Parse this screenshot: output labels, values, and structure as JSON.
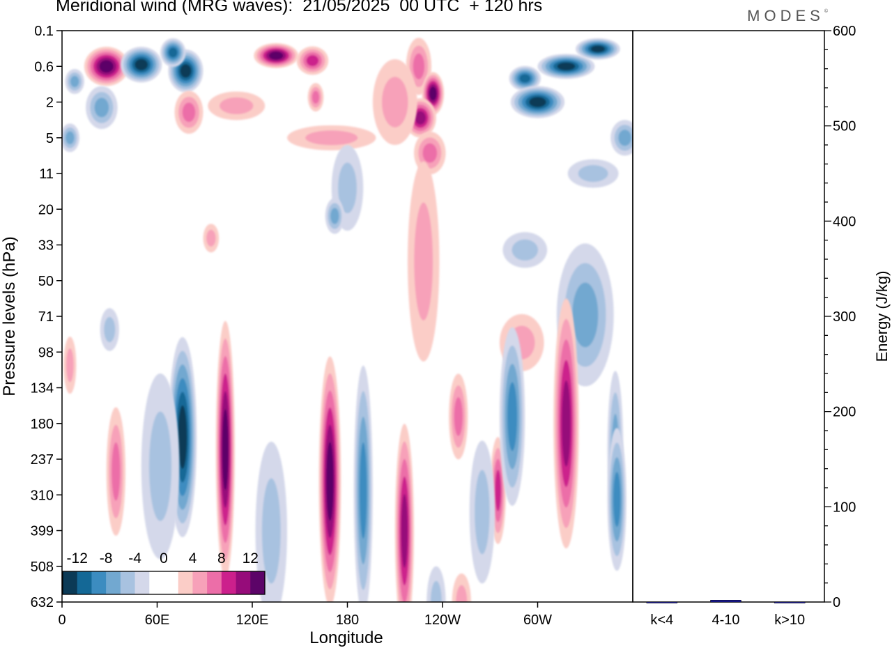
{
  "header": {
    "title": "Meridional wind (MRG waves):  21/05/2025  00 UTC  + 120 hrs",
    "brand": "MODES",
    "brand_mark": "©"
  },
  "chart_data": [
    {
      "type": "heatmap",
      "title": "Meridional wind (MRG waves):  21/05/2025  00 UTC  + 120 hrs",
      "xlabel": "Longitude",
      "ylabel": "Pressure levels (hPa)",
      "x_ticks": [
        "0",
        "60E",
        "120E",
        "180",
        "120W",
        "60W"
      ],
      "x_tick_degrees": [
        0,
        60,
        120,
        180,
        240,
        300
      ],
      "xlim_degrees": [
        0,
        360
      ],
      "y_ticks": [
        "0.1",
        "0.6",
        "2",
        "5",
        "11",
        "20",
        "33",
        "50",
        "71",
        "98",
        "134",
        "180",
        "237",
        "310",
        "399",
        "508",
        "632"
      ],
      "colorbar": {
        "labels": [
          "-12",
          "-8",
          "-4",
          "0",
          "4",
          "8",
          "12"
        ],
        "colors": [
          "#0b3a56",
          "#146896",
          "#3c8cc0",
          "#72a8d0",
          "#a8c2e0",
          "#d4d8ea",
          "#ffffff",
          "#ffffff",
          "#fbcdc7",
          "#f7a1b9",
          "#ec6ea8",
          "#cc208c",
          "#960c7a",
          "#5c0468"
        ],
        "placement": "bottom-left"
      },
      "negative_palette": [
        "#d4d8ea",
        "#a8c2e0",
        "#72a8d0",
        "#3c8cc0",
        "#146896",
        "#0b3a56"
      ],
      "positive_palette": [
        "#fbcdc7",
        "#f7a1b9",
        "#ec6ea8",
        "#cc208c",
        "#960c7a",
        "#5c0468"
      ],
      "features": [
        {
          "lon": 8,
          "level": 1.0,
          "value": -6,
          "w": 6,
          "h": 0.35
        },
        {
          "lon": 28,
          "level": 0.6,
          "value": 14,
          "w": 14,
          "h": 0.55
        },
        {
          "lon": 50,
          "level": 0.55,
          "value": -12,
          "w": 13,
          "h": 0.5
        },
        {
          "lon": 78,
          "level": 0.7,
          "value": -14,
          "w": 11,
          "h": 0.6
        },
        {
          "lon": 70,
          "level": 0.3,
          "value": -10,
          "w": 8,
          "h": 0.4
        },
        {
          "lon": 135,
          "level": 0.35,
          "value": 12,
          "w": 14,
          "h": 0.35
        },
        {
          "lon": 158,
          "level": 0.45,
          "value": 7,
          "w": 10,
          "h": 0.4
        },
        {
          "lon": 80,
          "level": 2.6,
          "value": 6,
          "w": 9,
          "h": 0.6
        },
        {
          "lon": 110,
          "level": 2.2,
          "value": 4,
          "w": 18,
          "h": 0.4
        },
        {
          "lon": 25,
          "level": 2.3,
          "value": -5,
          "w": 10,
          "h": 0.6
        },
        {
          "lon": 5,
          "level": 5.0,
          "value": -5,
          "w": 6,
          "h": 0.4
        },
        {
          "lon": 160,
          "level": 1.7,
          "value": 5,
          "w": 5,
          "h": 0.4
        },
        {
          "lon": 170,
          "level": 5.0,
          "value": 3,
          "w": 28,
          "h": 0.35
        },
        {
          "lon": 225,
          "level": 0.6,
          "value": 6,
          "w": 8,
          "h": 0.8
        },
        {
          "lon": 234,
          "level": 1.5,
          "value": 12,
          "w": 7,
          "h": 0.6
        },
        {
          "lon": 226,
          "level": 3.0,
          "value": 10,
          "w": 10,
          "h": 0.55
        },
        {
          "lon": 232,
          "level": 7.0,
          "value": 5,
          "w": 10,
          "h": 0.6
        },
        {
          "lon": 210,
          "level": 2.0,
          "value": 3,
          "w": 14,
          "h": 1.2
        },
        {
          "lon": 292,
          "level": 0.9,
          "value": -10,
          "w": 10,
          "h": 0.35
        },
        {
          "lon": 318,
          "level": 0.6,
          "value": -12,
          "w": 18,
          "h": 0.35
        },
        {
          "lon": 338,
          "level": 0.25,
          "value": -14,
          "w": 14,
          "h": 0.3
        },
        {
          "lon": 300,
          "level": 2.0,
          "value": -14,
          "w": 17,
          "h": 0.45
        },
        {
          "lon": 355,
          "level": 5.0,
          "value": -6,
          "w": 9,
          "h": 0.5
        },
        {
          "lon": 335,
          "level": 11.0,
          "value": -4,
          "w": 16,
          "h": 0.4
        },
        {
          "lon": 180,
          "level": 14.0,
          "value": -4,
          "w": 10,
          "h": 1.2
        },
        {
          "lon": 172,
          "level": 22.0,
          "value": -6,
          "w": 6,
          "h": 0.5
        },
        {
          "lon": 228,
          "level": 40.0,
          "value": 4,
          "w": 10,
          "h": 2.8
        },
        {
          "lon": 292,
          "level": 35.0,
          "value": -3,
          "w": 14,
          "h": 0.5
        },
        {
          "lon": 94,
          "level": 30.0,
          "value": 3,
          "w": 5,
          "h": 0.4
        },
        {
          "lon": 330,
          "level": 70.0,
          "value": -5,
          "w": 18,
          "h": 2.0
        },
        {
          "lon": 290,
          "level": 90.0,
          "value": 3,
          "w": 14,
          "h": 0.8
        },
        {
          "lon": 30,
          "level": 80.0,
          "value": -3,
          "w": 6,
          "h": 0.6
        },
        {
          "lon": 5,
          "level": 110.0,
          "value": 3,
          "w": 4,
          "h": 0.8
        },
        {
          "lon": 34,
          "level": 260.0,
          "value": 6,
          "w": 6,
          "h": 1.8
        },
        {
          "lon": 76,
          "level": 200.0,
          "value": -12,
          "w": 9,
          "h": 2.8
        },
        {
          "lon": 62,
          "level": 250.0,
          "value": -4,
          "w": 12,
          "h": 2.6
        },
        {
          "lon": 103,
          "level": 220.0,
          "value": 12,
          "w": 6,
          "h": 3.6
        },
        {
          "lon": 132,
          "level": 400.0,
          "value": -3,
          "w": 10,
          "h": 2.5
        },
        {
          "lon": 169,
          "level": 280.0,
          "value": 14,
          "w": 7,
          "h": 3.5
        },
        {
          "lon": 190,
          "level": 300.0,
          "value": -8,
          "w": 6,
          "h": 3.5
        },
        {
          "lon": 216,
          "level": 400.0,
          "value": 9,
          "w": 6,
          "h": 3.0
        },
        {
          "lon": 250,
          "level": 170.0,
          "value": 6,
          "w": 6,
          "h": 1.2
        },
        {
          "lon": 275,
          "level": 300.0,
          "value": 7,
          "w": 5,
          "h": 1.5
        },
        {
          "lon": 284,
          "level": 170.0,
          "value": -7,
          "w": 8,
          "h": 2.5
        },
        {
          "lon": 265,
          "level": 350.0,
          "value": -4,
          "w": 8,
          "h": 2.0
        },
        {
          "lon": 318,
          "level": 180.0,
          "value": 10,
          "w": 8,
          "h": 3.5
        },
        {
          "lon": 349,
          "level": 220.0,
          "value": -6,
          "w": 5,
          "h": 2.2
        },
        {
          "lon": 350,
          "level": 320.0,
          "value": -7,
          "w": 6,
          "h": 2.0
        },
        {
          "lon": 236,
          "level": 700.0,
          "value": -4,
          "w": 6,
          "h": 1.0
        },
        {
          "lon": 252,
          "level": 700.0,
          "value": 3,
          "w": 6,
          "h": 0.8
        }
      ]
    },
    {
      "type": "bar",
      "categories": [
        "k<4",
        "4-10",
        "k>10"
      ],
      "values": [
        0,
        2,
        0
      ],
      "ylabel": "Energy (J/kg)",
      "ylim": [
        0,
        600
      ],
      "y_ticks": [
        "0",
        "100",
        "200",
        "300",
        "400",
        "500",
        "600"
      ],
      "bar_color": "#1a1aa0"
    }
  ]
}
